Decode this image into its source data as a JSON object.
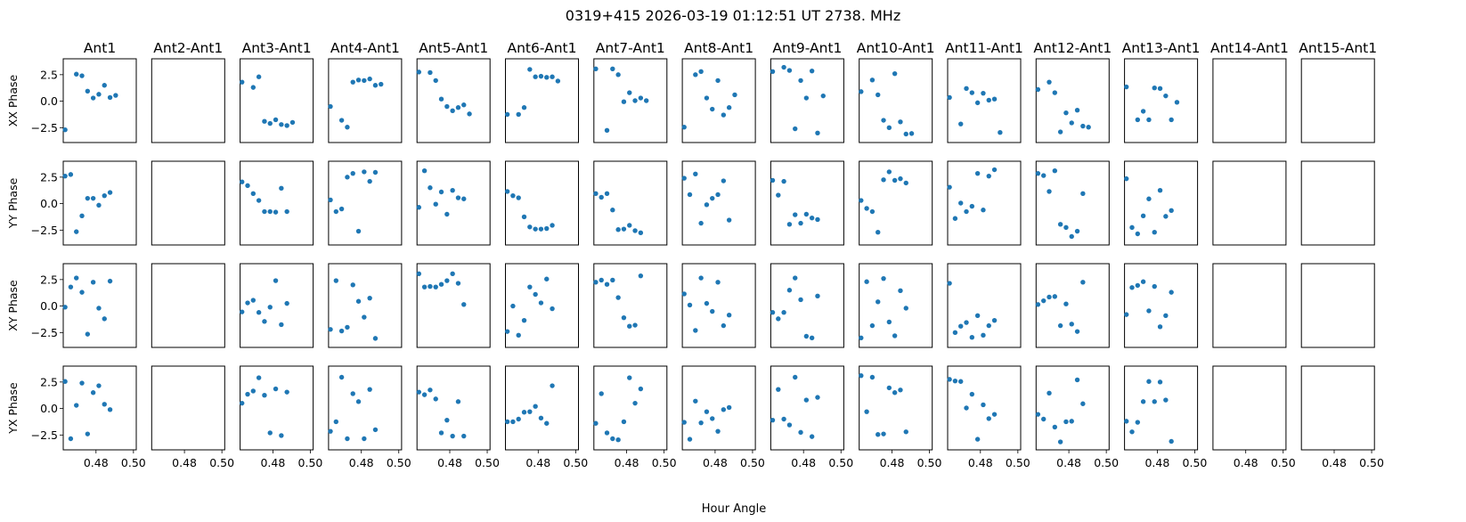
{
  "figure": {
    "title": "0319+415  2026-03-19 01:12:51 UT  2738. MHz",
    "xlabel": "Hour Angle"
  },
  "chart_data": {
    "type": "scatter",
    "title": "0319+415  2026-03-19 01:12:51 UT  2738. MHz",
    "xlabel": "Hour Angle",
    "columns": [
      "Ant1",
      "Ant2-Ant1",
      "Ant3-Ant1",
      "Ant4-Ant1",
      "Ant5-Ant1",
      "Ant6-Ant1",
      "Ant7-Ant1",
      "Ant8-Ant1",
      "Ant9-Ant1",
      "Ant10-Ant1",
      "Ant11-Ant1",
      "Ant12-Ant1",
      "Ant13-Ant1",
      "Ant14-Ant1",
      "Ant15-Ant1"
    ],
    "rows": [
      "XX Phase",
      "YY Phase",
      "XY Phase",
      "YX Phase"
    ],
    "xlim": [
      0.4625,
      0.5015
    ],
    "ylim": [
      -3.9,
      4.0
    ],
    "xticks": [
      0.48,
      0.5
    ],
    "xtick_labels": [
      "0.48",
      "0.50"
    ],
    "yticks": [
      2.5,
      0.0,
      -2.5
    ],
    "ytick_labels": [
      "2.5",
      "0.0",
      "−2.5"
    ],
    "marker_color": "#1f77b4",
    "x": [
      0.4635,
      0.4665,
      0.4695,
      0.4725,
      0.4755,
      0.4785,
      0.4815,
      0.4845,
      0.4875,
      0.4905,
      0.4935,
      0.4965,
      0.4995
    ],
    "series": {
      "XX Phase": [
        [
          -2.7,
          null,
          2.55,
          2.4,
          0.95,
          0.3,
          0.65,
          1.5,
          0.35,
          0.55,
          null,
          null,
          null
        ],
        null,
        [
          1.8,
          null,
          1.3,
          2.3,
          -1.9,
          -2.1,
          -1.75,
          -2.2,
          -2.3,
          -2.0,
          null,
          null,
          null
        ],
        [
          -0.5,
          null,
          -1.8,
          -2.45,
          1.8,
          2.0,
          1.95,
          2.1,
          1.5,
          1.6,
          null,
          null,
          null
        ],
        [
          2.75,
          null,
          2.7,
          1.95,
          0.2,
          -0.5,
          -0.9,
          -0.6,
          -0.35,
          -1.2,
          null,
          null,
          null
        ],
        [
          -1.25,
          null,
          -1.25,
          -0.6,
          3.0,
          2.3,
          2.35,
          2.25,
          2.3,
          1.9,
          null,
          null,
          null
        ],
        [
          3.05,
          null,
          -2.75,
          3.05,
          2.5,
          -0.05,
          0.8,
          0.05,
          0.3,
          0.05,
          null,
          null,
          null
        ],
        [
          -2.45,
          null,
          2.5,
          2.8,
          0.3,
          -0.75,
          1.95,
          -1.3,
          -0.6,
          0.6,
          null,
          null,
          null
        ],
        [
          2.8,
          null,
          3.2,
          2.9,
          -2.6,
          1.95,
          0.3,
          2.85,
          -3.0,
          0.5,
          null,
          null,
          null
        ],
        [
          0.9,
          null,
          2.0,
          0.6,
          -1.8,
          -2.5,
          2.6,
          -1.95,
          -3.1,
          -3.05,
          null,
          null,
          null
        ],
        [
          0.35,
          null,
          -2.15,
          1.2,
          0.8,
          -0.15,
          0.75,
          0.1,
          0.2,
          -2.95,
          null,
          null,
          null
        ],
        [
          1.1,
          null,
          1.8,
          0.8,
          -2.9,
          -1.1,
          -2.05,
          -0.85,
          -2.35,
          -2.45,
          null,
          null,
          null
        ],
        [
          1.35,
          null,
          -1.75,
          -0.95,
          -1.75,
          1.25,
          1.2,
          0.5,
          -1.75,
          -0.1,
          null,
          null,
          null
        ],
        null,
        null
      ],
      "YY Phase": [
        [
          2.6,
          2.75,
          -2.65,
          -1.15,
          0.5,
          0.5,
          -0.15,
          0.75,
          1.05,
          null,
          null,
          null,
          null
        ],
        null,
        [
          2.05,
          1.7,
          0.95,
          0.3,
          -0.75,
          -0.75,
          -0.8,
          1.45,
          -0.75,
          null,
          null,
          null,
          null
        ],
        [
          0.35,
          -0.75,
          -0.5,
          2.5,
          2.85,
          -2.6,
          3.0,
          2.1,
          2.95,
          null,
          null,
          null,
          null
        ],
        [
          -0.35,
          3.1,
          1.5,
          -0.05,
          1.1,
          -1.0,
          1.25,
          0.55,
          0.45,
          null,
          null,
          null,
          null
        ],
        [
          1.15,
          0.75,
          0.55,
          -1.25,
          -2.2,
          -2.4,
          -2.4,
          -2.35,
          -2.05,
          null,
          null,
          null,
          null
        ],
        [
          0.95,
          0.6,
          0.95,
          -0.6,
          -2.45,
          -2.4,
          -2.05,
          -2.55,
          -2.75,
          null,
          null,
          null,
          null
        ],
        [
          2.4,
          0.85,
          2.8,
          -1.85,
          -0.1,
          0.5,
          0.85,
          2.15,
          -1.55,
          null,
          null,
          null,
          null
        ],
        [
          2.2,
          0.8,
          2.1,
          -1.95,
          -1.05,
          -1.85,
          -1.0,
          -1.35,
          -1.5,
          null,
          null,
          null,
          null
        ],
        [
          0.3,
          -0.45,
          -0.75,
          -2.7,
          2.25,
          3.0,
          2.2,
          2.35,
          1.95,
          null,
          null,
          null,
          null
        ],
        [
          1.55,
          -1.4,
          0.05,
          -0.75,
          -0.25,
          2.85,
          -0.6,
          2.6,
          3.2,
          null,
          null,
          null,
          null
        ],
        [
          2.85,
          2.65,
          1.15,
          3.1,
          -1.95,
          -2.25,
          -3.1,
          -2.6,
          0.95,
          null,
          null,
          null,
          null
        ],
        [
          2.35,
          -2.25,
          -2.85,
          -1.15,
          0.45,
          -2.7,
          1.25,
          -1.2,
          -0.65,
          null,
          null,
          null,
          null
        ],
        null,
        null
      ],
      "XY Phase": [
        [
          -0.1,
          1.8,
          2.65,
          1.3,
          -2.65,
          2.25,
          -0.2,
          -1.2,
          2.35,
          null,
          null,
          null,
          null
        ],
        null,
        [
          -0.55,
          0.3,
          0.55,
          -0.6,
          -1.45,
          -0.1,
          2.4,
          -1.75,
          0.25,
          null,
          null,
          null,
          null
        ],
        [
          -2.2,
          2.4,
          -2.35,
          -2.0,
          2.0,
          0.45,
          -1.05,
          0.75,
          -3.05,
          null,
          null,
          null,
          null
        ],
        [
          3.05,
          1.8,
          1.85,
          1.8,
          2.05,
          2.4,
          3.05,
          2.15,
          0.15,
          null,
          null,
          null,
          null
        ],
        [
          -2.4,
          0.0,
          -2.75,
          -1.35,
          1.8,
          1.1,
          0.3,
          2.55,
          -0.25,
          null,
          null,
          null,
          null
        ],
        [
          2.25,
          2.45,
          2.05,
          2.45,
          0.8,
          -1.1,
          -1.9,
          -1.8,
          2.85,
          null,
          null,
          null,
          null
        ],
        [
          1.15,
          0.1,
          -2.3,
          2.65,
          0.25,
          -0.5,
          2.25,
          -1.85,
          -0.85,
          null,
          null,
          null,
          null
        ],
        [
          -0.6,
          -1.2,
          -0.6,
          1.5,
          2.65,
          0.6,
          -2.85,
          -3.0,
          0.95,
          null,
          null,
          null,
          null
        ],
        [
          -3.0,
          2.3,
          -1.85,
          0.4,
          2.6,
          -1.5,
          -2.8,
          1.45,
          -0.2,
          null,
          null,
          null,
          null
        ],
        [
          2.15,
          -2.5,
          -1.9,
          -1.55,
          -2.95,
          -0.9,
          -2.75,
          -1.85,
          -1.35,
          null,
          null,
          null,
          null
        ],
        [
          0.15,
          0.5,
          0.85,
          0.9,
          -1.85,
          0.2,
          -1.7,
          -2.4,
          2.25,
          null,
          null,
          null,
          null
        ],
        [
          -0.8,
          1.75,
          1.95,
          2.3,
          -0.45,
          1.85,
          -1.95,
          -0.9,
          1.3,
          null,
          null,
          null,
          null
        ],
        null,
        null
      ],
      "YX Phase": [
        [
          2.55,
          -2.85,
          0.3,
          2.4,
          -2.4,
          1.5,
          2.15,
          0.4,
          -0.1,
          null,
          null,
          null,
          null
        ],
        null,
        [
          0.5,
          1.35,
          1.65,
          2.9,
          1.25,
          -2.3,
          1.85,
          -2.55,
          1.55,
          null,
          null,
          null,
          null
        ],
        [
          -2.15,
          -1.25,
          2.95,
          -2.85,
          1.4,
          0.65,
          -2.85,
          1.8,
          -2.0,
          null,
          null,
          null,
          null
        ],
        [
          1.55,
          1.3,
          1.75,
          0.9,
          -2.3,
          -1.1,
          -2.6,
          0.65,
          -2.6,
          null,
          null,
          null,
          null
        ],
        [
          -1.25,
          -1.25,
          -1.0,
          -0.35,
          -0.3,
          0.2,
          -0.9,
          -1.4,
          2.15,
          null,
          null,
          null,
          null
        ],
        [
          -1.4,
          1.4,
          -2.3,
          -2.85,
          -2.95,
          -1.25,
          2.9,
          0.5,
          1.85,
          null,
          null,
          null,
          null
        ],
        [
          -1.3,
          -2.9,
          0.7,
          -1.35,
          -0.3,
          -0.95,
          -2.15,
          -0.1,
          0.1,
          null,
          null,
          null,
          null
        ],
        [
          -1.1,
          1.8,
          -1.0,
          -1.55,
          2.95,
          -2.25,
          0.8,
          -2.65,
          1.05,
          null,
          null,
          null,
          null
        ],
        [
          3.1,
          -0.3,
          2.95,
          -2.45,
          -2.4,
          1.95,
          1.5,
          1.75,
          -2.2,
          null,
          null,
          null,
          null
        ],
        [
          2.75,
          2.6,
          2.55,
          0.05,
          1.35,
          -2.9,
          0.35,
          -0.95,
          -0.55,
          null,
          null,
          null,
          null
        ],
        [
          -0.55,
          -1.0,
          1.45,
          -1.75,
          -3.15,
          -1.25,
          -1.2,
          2.7,
          0.45,
          null,
          null,
          null,
          null
        ],
        [
          -1.2,
          -2.2,
          -1.3,
          0.65,
          2.55,
          0.65,
          2.5,
          0.8,
          -3.1,
          null,
          null,
          null,
          null
        ],
        null,
        null
      ]
    }
  }
}
